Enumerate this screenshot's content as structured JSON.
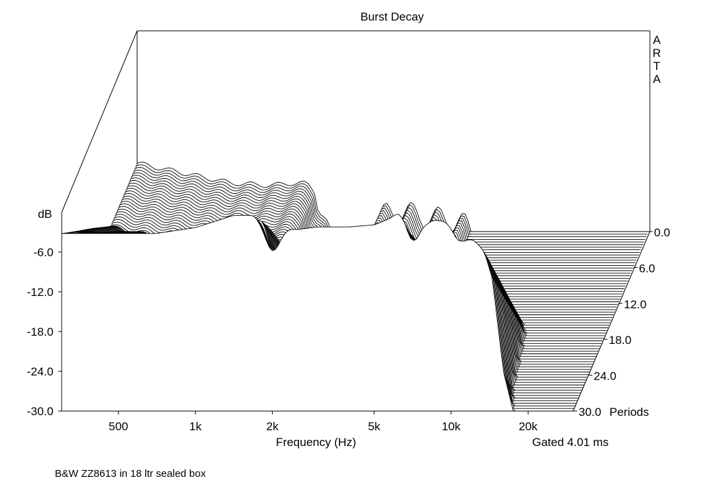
{
  "chart_data": {
    "type": "waterfall",
    "title": "Burst Decay",
    "watermark": "ARTA",
    "zlabel": "dB",
    "xlabel": "Frequency (Hz)",
    "time_axis_unit": "Periods",
    "gate_label": "Gated 4.01 ms",
    "caption": "B&W ZZ8613 in 18 ltr sealed box",
    "x_scale": "log",
    "xlim": [
      300,
      30000
    ],
    "zlim": [
      -30,
      0
    ],
    "tlim": [
      0,
      30
    ],
    "x_ticks": [
      {
        "value": 500,
        "label": "500"
      },
      {
        "value": 1000,
        "label": "1k"
      },
      {
        "value": 2000,
        "label": "2k"
      },
      {
        "value": 5000,
        "label": "5k"
      },
      {
        "value": 10000,
        "label": "10k"
      },
      {
        "value": 20000,
        "label": "20k"
      }
    ],
    "z_ticks": [
      {
        "value": -6,
        "label": "-6.0"
      },
      {
        "value": -12,
        "label": "-12.0"
      },
      {
        "value": -18,
        "label": "-18.0"
      },
      {
        "value": -24,
        "label": "-24.0"
      },
      {
        "value": -30,
        "label": "-30.0"
      }
    ],
    "t_ticks": [
      {
        "value": 0,
        "label": "0.0"
      },
      {
        "value": 6,
        "label": "6.0"
      },
      {
        "value": 12,
        "label": "12.0"
      },
      {
        "value": 18,
        "label": "18.0"
      },
      {
        "value": 24,
        "label": "24.0"
      },
      {
        "value": 30,
        "label": "30.0"
      }
    ],
    "slices_count": 70,
    "front_slice": {
      "x": [
        330,
        700,
        1000,
        1400,
        1700,
        2000,
        2500,
        3000,
        4000,
        5000,
        5700,
        6200,
        6600,
        7400,
        8500,
        9500,
        11000,
        12500,
        13500,
        14500,
        16000,
        17500,
        20000,
        25000,
        30000
      ],
      "y": [
        -3.2,
        -3.2,
        -2.3,
        -0.5,
        -0.4,
        -1.8,
        -2.6,
        -2.2,
        -2.2,
        -1.9,
        -1.0,
        -0.1,
        -0.5,
        -2.6,
        -1.2,
        -1.3,
        -2.2,
        -4.4,
        -6.0,
        -10.0,
        -24.0,
        -30.0,
        -30.0,
        -30.0,
        -30.0
      ]
    },
    "notches": [
      {
        "x": 2000,
        "width_oct": 0.14,
        "depth": 16
      },
      {
        "x": 7000,
        "width_oct": 0.1,
        "depth": 10
      },
      {
        "x": 10800,
        "width_oct": 0.12,
        "depth": 9
      }
    ],
    "tail_peak": {
      "x": 6500,
      "level": -14.5
    }
  }
}
